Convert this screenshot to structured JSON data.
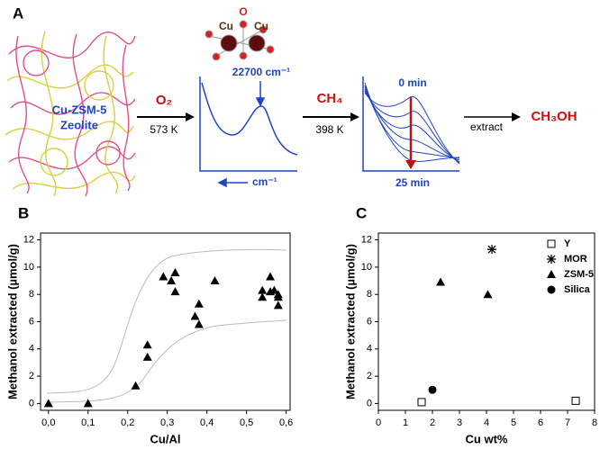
{
  "panel_a": {
    "panel": "A",
    "zeolite_label": [
      "Cu-ZSM-5",
      "Zeolite"
    ],
    "cluster_atoms": [
      "Cu",
      "O",
      "Cu"
    ],
    "step1_reagent": "O₂",
    "step1_temperature": "573 K",
    "spectrum1_peak": "22700 cm⁻¹",
    "spectrum1_axis": "cm⁻¹",
    "step2_reagent": "CH₄",
    "step2_temperature": "398 K",
    "spectrum2_start": "0 min",
    "spectrum2_end": "25 min",
    "step3_label": "extract",
    "product": "CH₃OH"
  },
  "chart_data": [
    {
      "type": "scatter",
      "panel": "B",
      "x_label": "Cu/Al",
      "y_label": "Methanol extracted (µmol/g)",
      "marker": "triangle",
      "color": "#000000",
      "x": [
        0.0,
        0.1,
        0.22,
        0.25,
        0.25,
        0.29,
        0.31,
        0.32,
        0.32,
        0.37,
        0.38,
        0.38,
        0.42,
        0.54,
        0.54,
        0.56,
        0.56,
        0.57,
        0.58,
        0.58,
        0.58
      ],
      "values": [
        0,
        0,
        1.3,
        3.4,
        4.3,
        9.3,
        9.0,
        9.6,
        8.2,
        6.4,
        5.8,
        7.3,
        9.0,
        7.8,
        8.3,
        9.3,
        8.2,
        8.3,
        8.0,
        7.2,
        7.8
      ],
      "xlim": [
        -0.02,
        0.61
      ],
      "ylim": [
        -0.5,
        12.5
      ],
      "xticks": [
        {
          "value": 0,
          "label": "0,0"
        },
        {
          "value": 0.1,
          "label": "0,1"
        },
        {
          "value": 0.2,
          "label": "0,2"
        },
        {
          "value": 0.3,
          "label": "0,3"
        },
        {
          "value": 0.4,
          "label": "0,4"
        },
        {
          "value": 0.5,
          "label": "0,5"
        },
        {
          "value": 0.6,
          "label": "0,6"
        }
      ],
      "yticks": [
        0,
        2,
        4,
        6,
        8,
        10,
        12
      ]
    },
    {
      "type": "scatter",
      "panel": "C",
      "x_label": "Cu wt%",
      "y_label": "Methanol extracted (µmol/g)",
      "legend": "top-right",
      "series": [
        {
          "name": "Y",
          "color": "#000000",
          "marker": "square-open",
          "x": [
            1.6,
            7.3
          ],
          "values": [
            0.1,
            0.2
          ]
        },
        {
          "name": "MOR",
          "color": "#000000",
          "marker": "asterisk",
          "x": [
            4.2
          ],
          "values": [
            11.3
          ]
        },
        {
          "name": "ZSM-5",
          "color": "#000000",
          "marker": "triangle",
          "x": [
            2.3,
            4.05
          ],
          "values": [
            8.9,
            8.0
          ]
        },
        {
          "name": "Silica",
          "color": "#000000",
          "marker": "circle",
          "x": [
            2.0
          ],
          "values": [
            1.0
          ]
        }
      ],
      "xlim": [
        0,
        8
      ],
      "ylim": [
        -0.5,
        12.5
      ],
      "xticks": [
        0,
        1,
        2,
        3,
        4,
        5,
        6,
        7,
        8
      ],
      "yticks": [
        0,
        2,
        4,
        6,
        8,
        10,
        12
      ]
    }
  ]
}
